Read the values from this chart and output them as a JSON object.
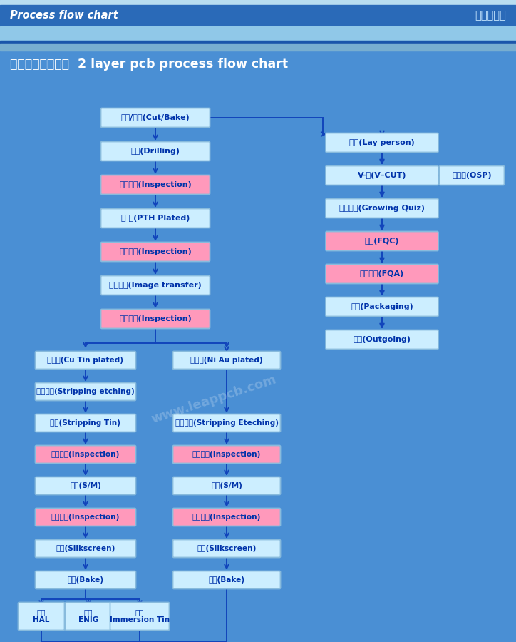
{
  "bg_color": "#4a8fd4",
  "header_dark": "#2a6ab8",
  "header_light": "#90c8e8",
  "header_strip": "#7ab8d8",
  "title_bg": "#4a8fd4",
  "header_text_left": "Process flow chart",
  "header_text_right": "生产流程图",
  "main_title": "双面板工艺流程图  2 layer pcb process flow chart",
  "box_cyan": "#cceeff",
  "box_pink": "#ff99bb",
  "text_dark": "#0033aa",
  "arrow_color": "#1144bb",
  "watermark": "www.leappcb.com",
  "left_col": [
    {
      "text": "下料/烘板(Cut/Bake)",
      "pink": false
    },
    {
      "text": "钒孔(Drilling)",
      "pink": false
    },
    {
      "text": "钒孔检查(Inspection)",
      "pink": true
    },
    {
      "text": "沉 铜(PTH Plated)",
      "pink": false
    },
    {
      "text": "沉铜检查(Inspection)",
      "pink": true
    },
    {
      "text": "图形转移(Image transfer)",
      "pink": false
    },
    {
      "text": "线路检查(Inspection)",
      "pink": true
    }
  ],
  "branch_a": [
    {
      "text": "镀铜锡(Cu Tin plated)",
      "pink": false
    },
    {
      "text": "退膚蚀刻(Stripping etching)",
      "pink": false
    },
    {
      "text": "退锡(Stripping Tin)",
      "pink": false
    },
    {
      "text": "蚀刻检查(Inspection)",
      "pink": true
    },
    {
      "text": "阻焊(S/M)",
      "pink": false
    },
    {
      "text": "阻焊检查(Inspection)",
      "pink": true
    },
    {
      "text": "文字(Silkscreen)",
      "pink": false
    },
    {
      "text": "烤板(Bake)",
      "pink": false
    }
  ],
  "branch_b": [
    {
      "text": "镀镍金(Ni Au plated)",
      "pink": false
    },
    {
      "text": "退膚蚀刻(Stripping Eteching)",
      "pink": false
    },
    {
      "text": "蚀刻检查(Inspection)",
      "pink": true
    },
    {
      "text": "阻焊(S/M)",
      "pink": false
    },
    {
      "text": "阻焊检查(Inspection)",
      "pink": true
    },
    {
      "text": "文字(Silkscreen)",
      "pink": false
    },
    {
      "text": "烤板(Bake)",
      "pink": false
    }
  ],
  "bottom_three": [
    {
      "text": "嚙锡\nHAL",
      "pink": false
    },
    {
      "text": "沉金\nENIG",
      "pink": false
    },
    {
      "text": "沉锡\nImmersion Tin",
      "pink": false
    }
  ],
  "right_col": [
    {
      "text": "外型(Lay person)",
      "pink": false
    },
    {
      "text": "V-割(V–CUT)",
      "pink": false
    },
    {
      "text": "成品测试(Growing Quiz)",
      "pink": false
    },
    {
      "text": "终检(FQC)",
      "pink": true
    },
    {
      "text": "成品抖检(FQA)",
      "pink": true
    },
    {
      "text": "包装(Packaging)",
      "pink": false
    },
    {
      "text": "出货(Outgoing)",
      "pink": false
    }
  ],
  "osp_text": "抗氧化(OSP)"
}
